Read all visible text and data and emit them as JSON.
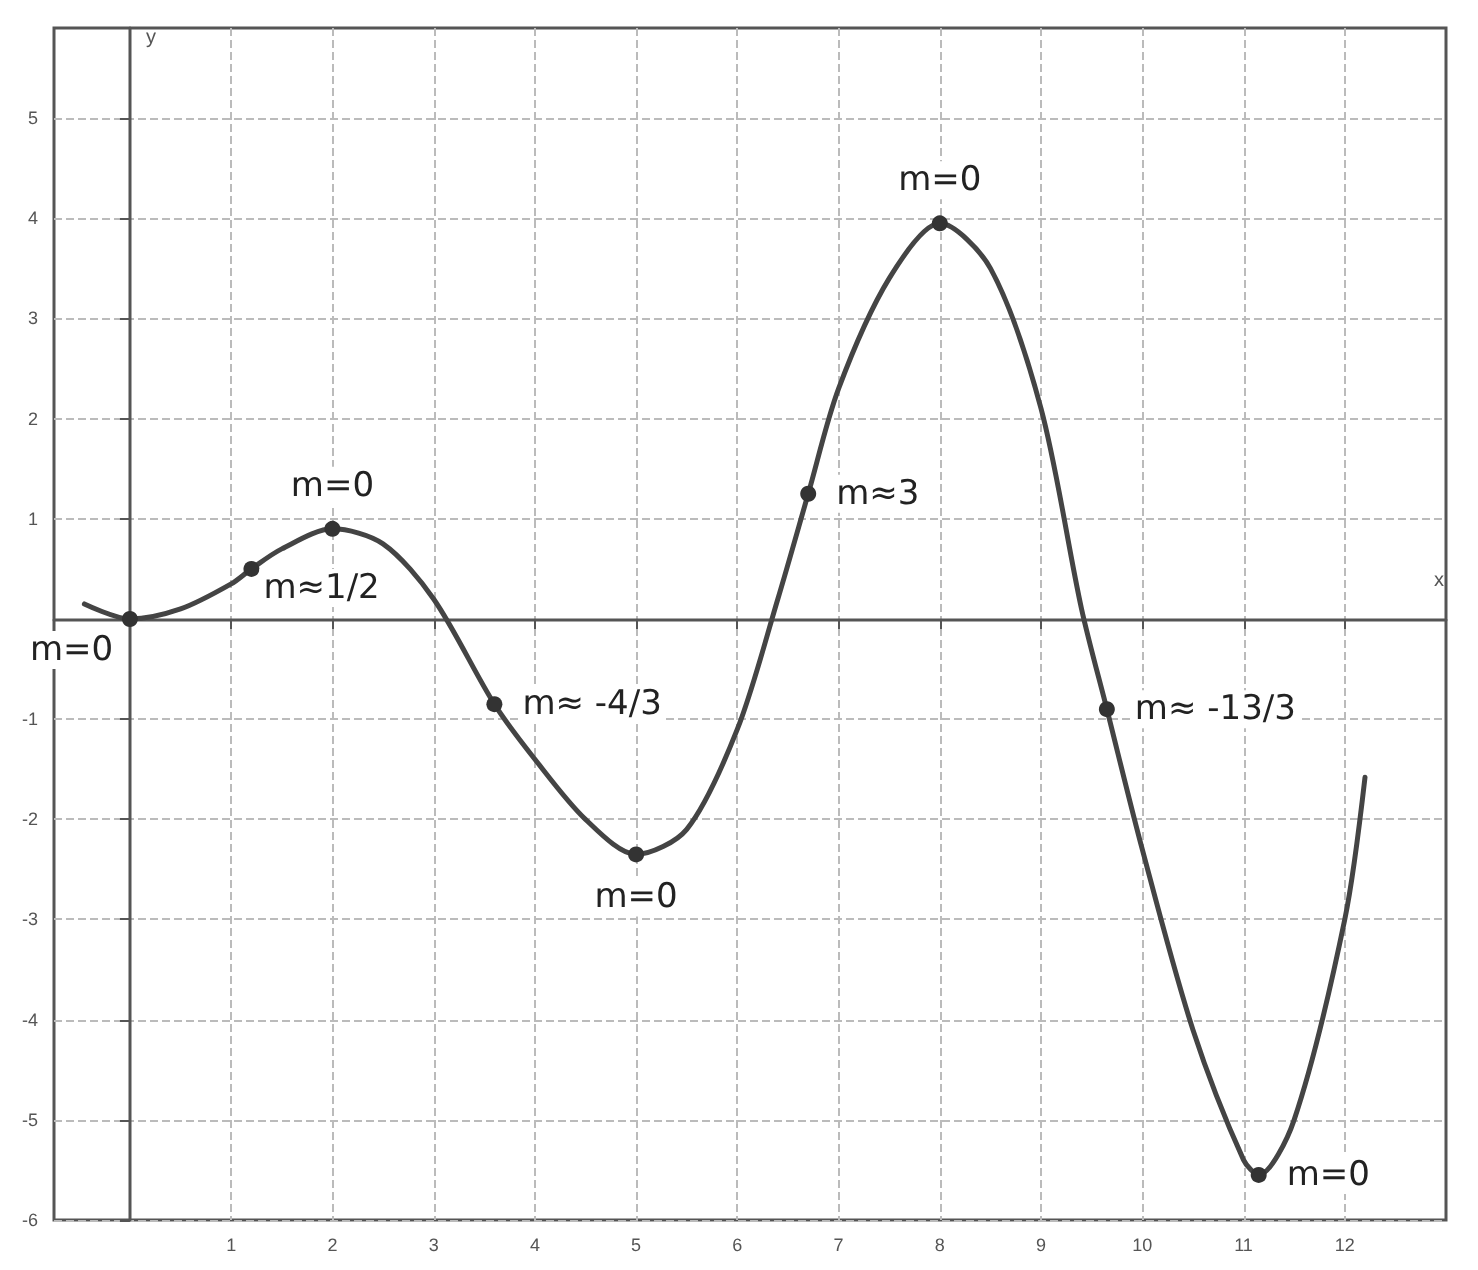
{
  "chart_data": {
    "type": "line",
    "xlabel": "x",
    "ylabel": "y",
    "xlim": [
      -0.75,
      13
    ],
    "ylim": [
      -6,
      5.9
    ],
    "xticks": [
      1,
      2,
      3,
      4,
      5,
      6,
      7,
      8,
      9,
      10,
      11,
      12
    ],
    "yticks": [
      -6,
      -5,
      -4,
      -3,
      -2,
      -1,
      1,
      2,
      3,
      4,
      5
    ],
    "grid": true,
    "marker": "none",
    "line_style": "solid",
    "series": [
      {
        "color": "#444444",
        "x": [
          -0.45,
          0,
          0.5,
          1,
          1.2,
          1.5,
          2,
          2.5,
          3,
          3.6,
          4,
          4.5,
          5,
          5.5,
          6,
          6.4,
          6.7,
          7,
          7.5,
          8,
          8.5,
          9,
          9.4,
          9.65,
          10,
          10.5,
          11,
          11.15,
          11.5,
          12,
          12.2
        ],
        "values": [
          0.15,
          0,
          0.1,
          0.35,
          0.5,
          0.7,
          0.9,
          0.75,
          0.2,
          -0.85,
          -1.4,
          -2.0,
          -2.35,
          -2.1,
          -1.1,
          0.2,
          1.25,
          2.3,
          3.4,
          3.95,
          3.5,
          2.1,
          0.1,
          -0.9,
          -2.3,
          -4.1,
          -5.4,
          -5.55,
          -5.0,
          -3.0,
          -1.58
        ]
      }
    ],
    "annotations": [
      {
        "text": "m=0",
        "x": 0,
        "y": 0
      },
      {
        "text": "m≈1/2",
        "x": 1.2,
        "y": 0.5
      },
      {
        "text": "m=0",
        "x": 2,
        "y": 0.9
      },
      {
        "text": "m≈ -4/3",
        "x": 3.6,
        "y": -0.85
      },
      {
        "text": "m=0",
        "x": 5,
        "y": -2.35
      },
      {
        "text": "m≈3",
        "x": 6.7,
        "y": 1.25
      },
      {
        "text": "m=0",
        "x": 8,
        "y": 3.95
      },
      {
        "text": "m≈ -13/3",
        "x": 9.65,
        "y": -0.9
      },
      {
        "text": "m=0",
        "x": 11.15,
        "y": -5.55
      }
    ]
  }
}
